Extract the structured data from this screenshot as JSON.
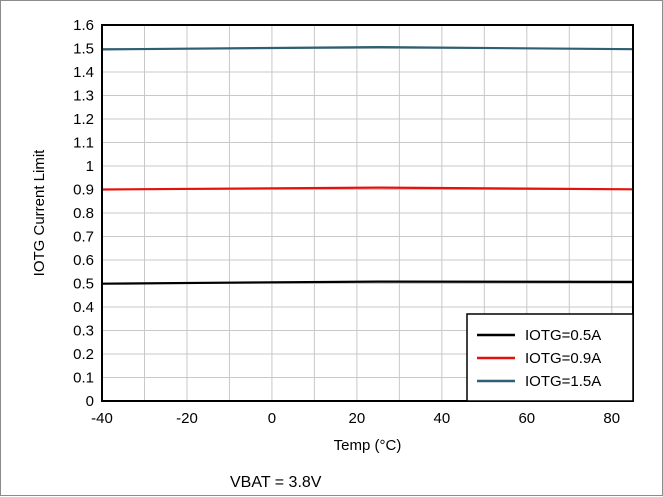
{
  "chart_data": {
    "type": "line",
    "title": "",
    "xlabel": "Temp (°C)",
    "ylabel": "IOTG Current Limit",
    "xlim": [
      -40,
      85
    ],
    "ylim": [
      0,
      1.6
    ],
    "x_ticks": [
      -40,
      -20,
      0,
      20,
      40,
      60,
      80
    ],
    "x_tick_labels": [
      "-40",
      "-20",
      "0",
      "20",
      "40",
      "60",
      "80"
    ],
    "y_ticks": [
      0,
      0.1,
      0.2,
      0.3,
      0.4,
      0.5,
      0.6,
      0.7,
      0.8,
      0.9,
      1.0,
      1.1,
      1.2,
      1.3,
      1.4,
      1.5,
      1.6
    ],
    "y_tick_labels": [
      "0",
      "0.1",
      "0.2",
      "0.3",
      "0.4",
      "0.5",
      "0.6",
      "0.7",
      "0.8",
      "0.9",
      "1",
      "1.1",
      "1.2",
      "1.3",
      "1.4",
      "1.5",
      "1.6"
    ],
    "grid": true,
    "legend_position": "bottom-right",
    "series": [
      {
        "name": "IOTG=0.5A",
        "color": "#000000",
        "x": [
          -40,
          0,
          25,
          85
        ],
        "y": [
          0.499,
          0.505,
          0.508,
          0.507
        ]
      },
      {
        "name": "IOTG=0.9A",
        "color": "#e3120b",
        "x": [
          -40,
          0,
          25,
          85
        ],
        "y": [
          0.9,
          0.905,
          0.908,
          0.901
        ]
      },
      {
        "name": "IOTG=1.5A",
        "color": "#2e5f73",
        "x": [
          -40,
          0,
          25,
          85
        ],
        "y": [
          1.496,
          1.502,
          1.506,
          1.497
        ]
      }
    ]
  },
  "footnote": "VBAT = 3.8V"
}
